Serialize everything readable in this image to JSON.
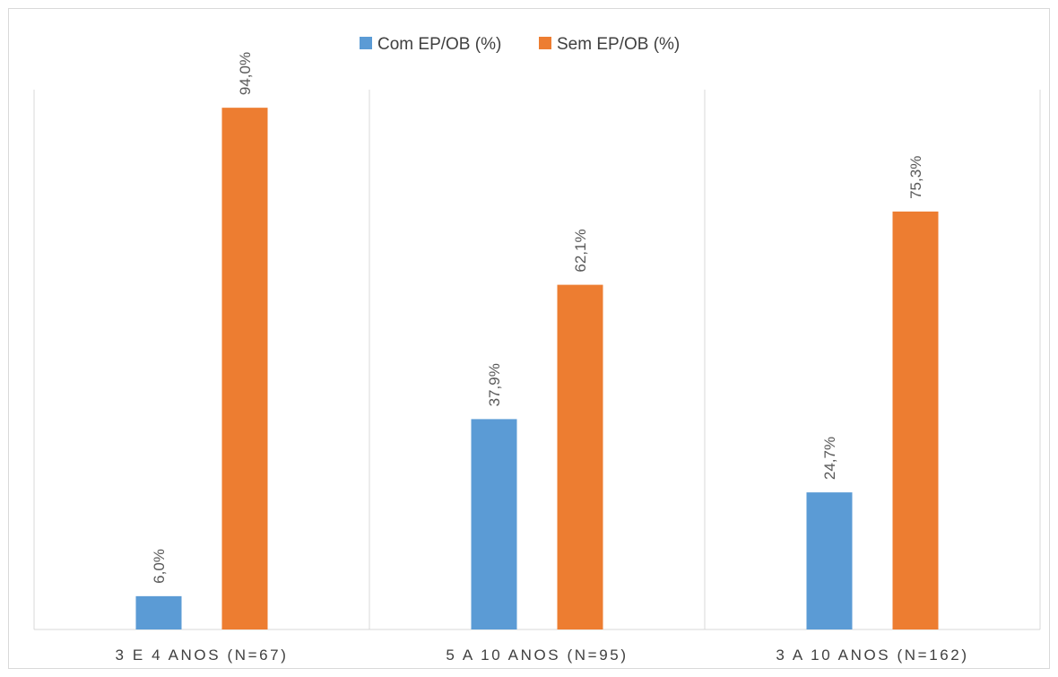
{
  "chart_data": {
    "type": "bar",
    "categories": [
      "3 E 4 ANOS (N=67)",
      "5 A 10 ANOS (N=95)",
      "3 A 10 ANOS (N=162)"
    ],
    "series": [
      {
        "name": "Com EP/OB (%)",
        "color": "#5b9bd5",
        "values": [
          6.0,
          37.9,
          24.7
        ],
        "labels": [
          "6,0%",
          "37,9%",
          "24,7%"
        ]
      },
      {
        "name": "Sem EP/OB (%)",
        "color": "#ed7d31",
        "values": [
          94.0,
          62.1,
          75.3
        ],
        "labels": [
          "94,0%",
          "62,1%",
          "75,3%"
        ]
      }
    ],
    "ylim": [
      0,
      100
    ],
    "legend_position": "top-center",
    "grid": "vertical-separators"
  }
}
